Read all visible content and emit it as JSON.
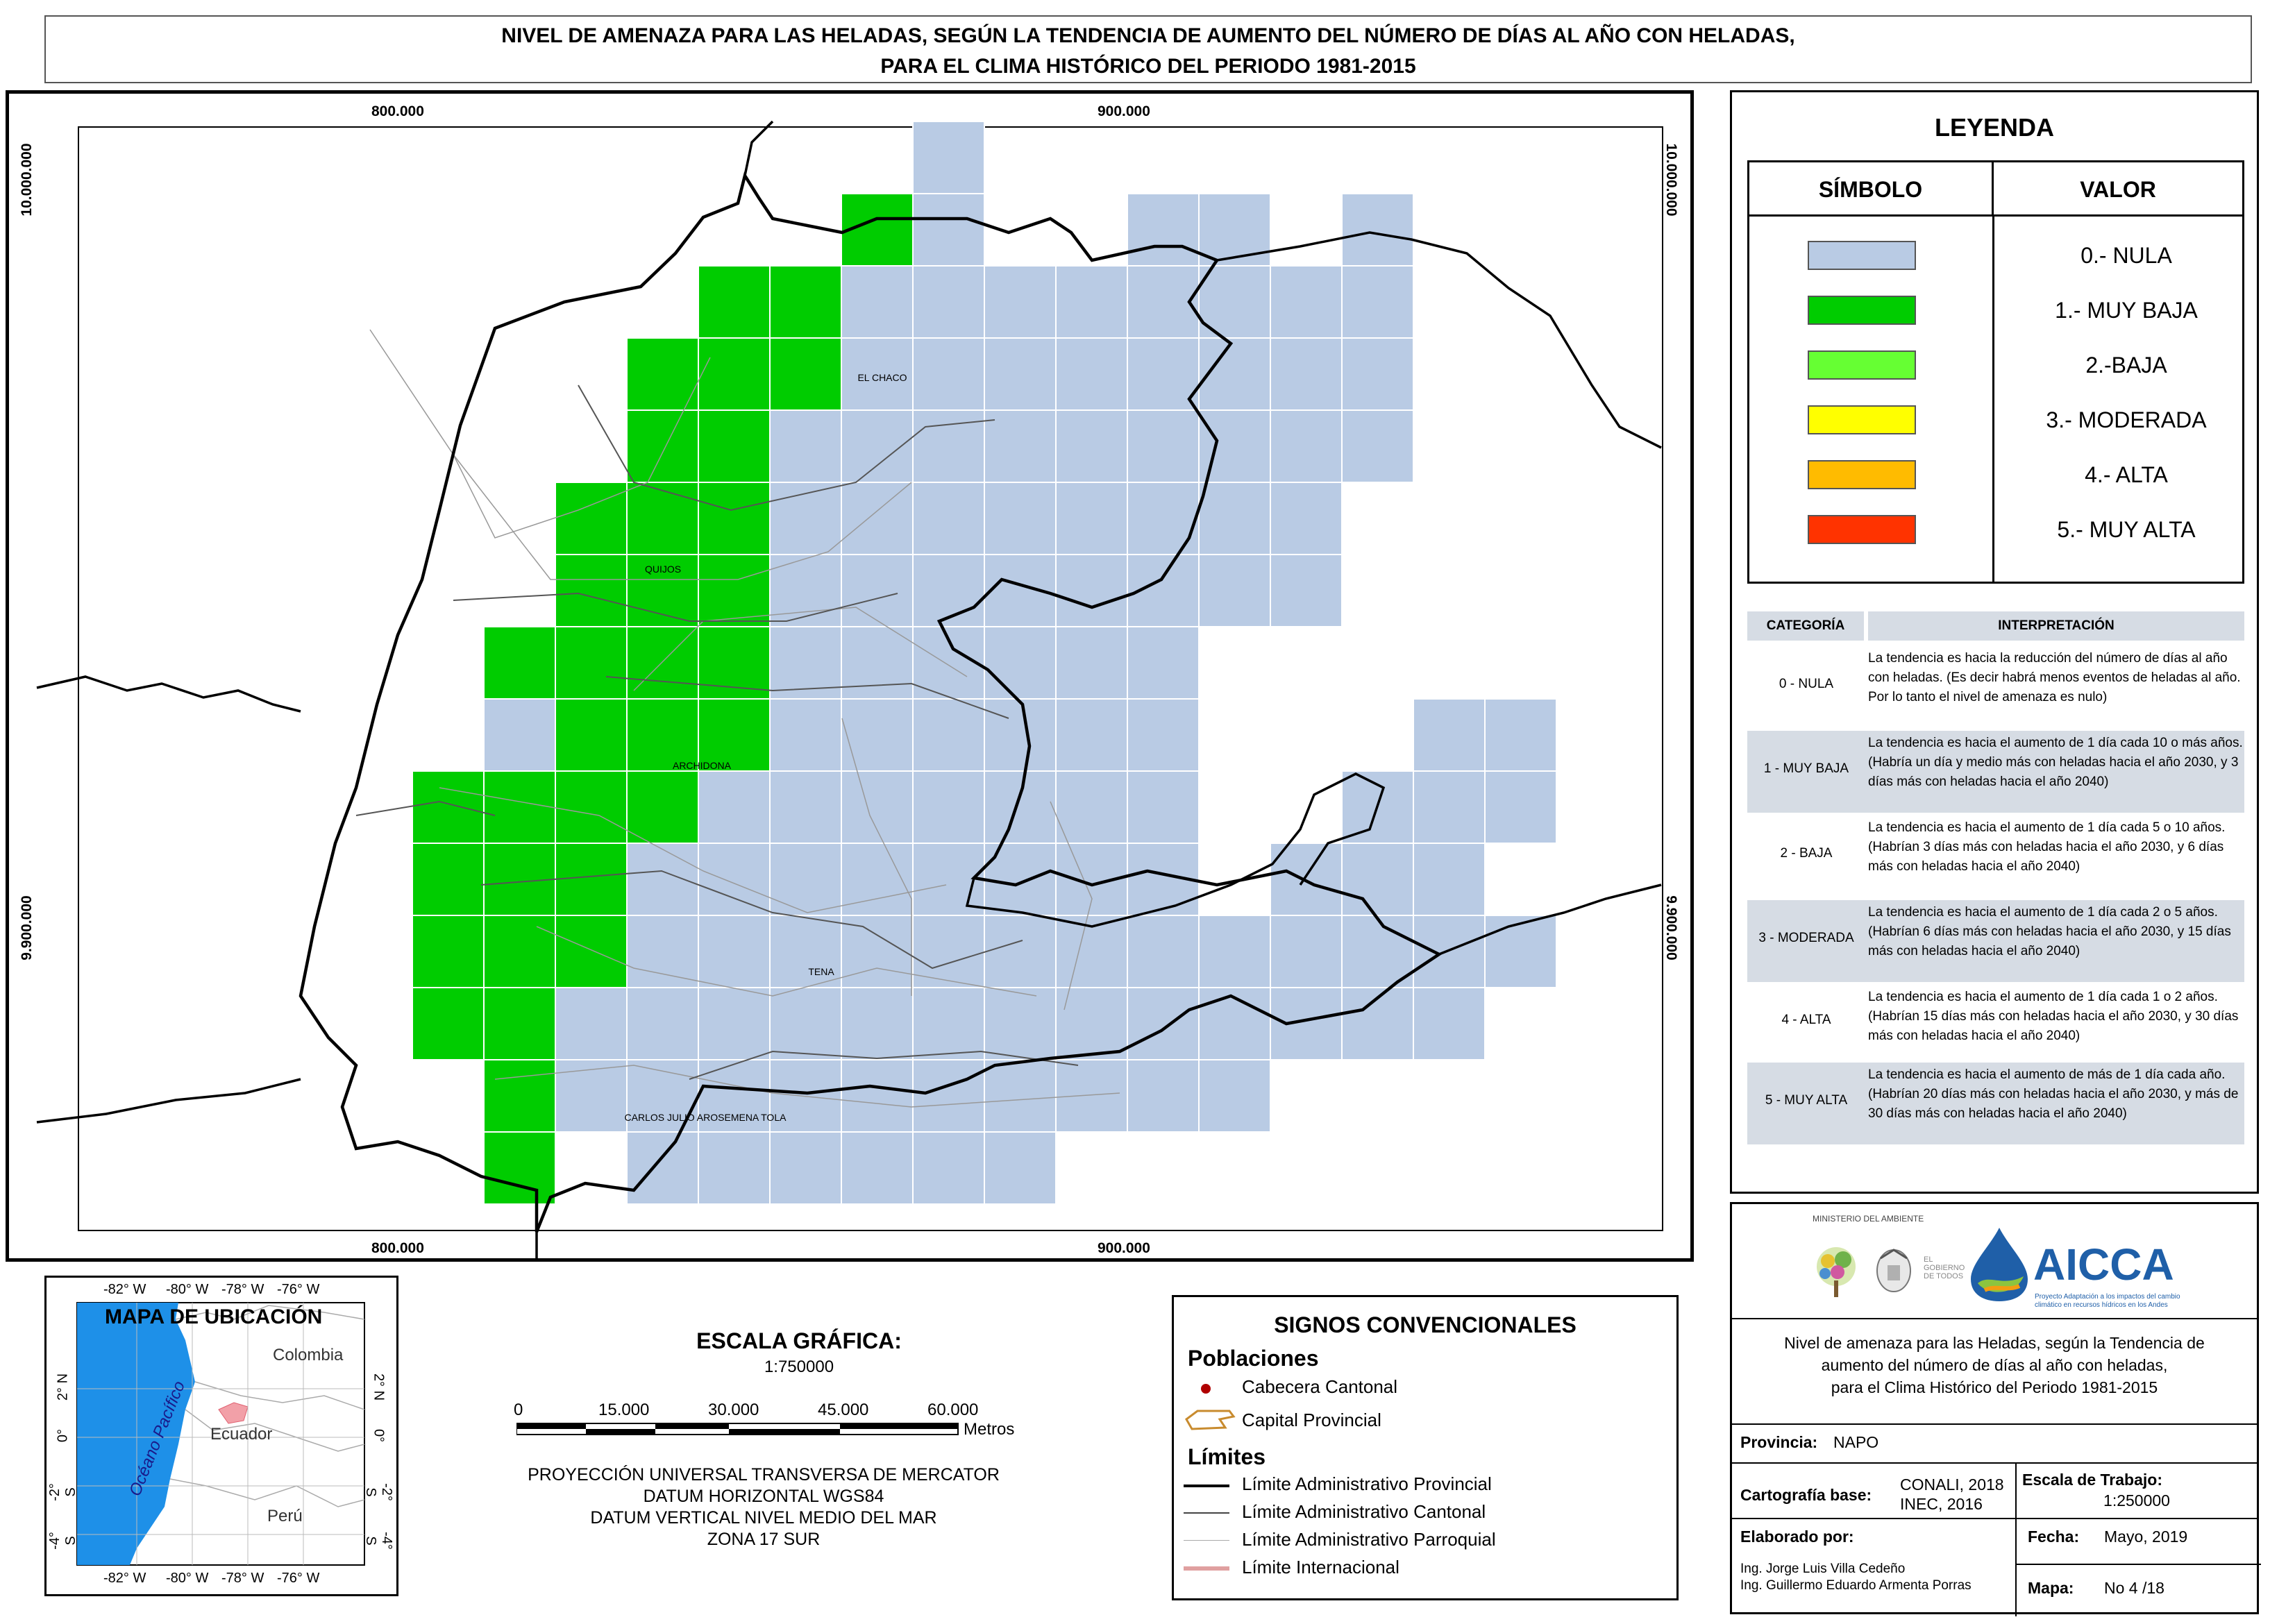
{
  "title": {
    "line1": "NIVEL DE AMENAZA PARA LAS HELADAS, SEGÚN LA TENDENCIA DE AUMENTO DEL NÚMERO DE DÍAS AL AÑO CON HELADAS,",
    "line2": "PARA EL CLIMA HISTÓRICO DEL PERIODO 1981-2015"
  },
  "map": {
    "x_ticks": [
      "800.000",
      "900.000"
    ],
    "y_ticks": [
      "10.000.000",
      "9.900.000"
    ],
    "place_labels": [
      "EL CHACO",
      "QUIJOS",
      "ARCHIDONA",
      "TENA",
      "CARLOS JULIO AROSEMENA TOLA"
    ],
    "colors": {
      "nula": "#b9cbe4",
      "muy_baja": "#00cc00",
      "grid_line": "#ffffff",
      "province_line": "#000000",
      "cantonal_line": "#555555",
      "parroquial_line": "#aaaaaa"
    }
  },
  "legend": {
    "title": "LEYENDA",
    "col_symbol": "SÍMBOLO",
    "col_value": "VALOR",
    "items": [
      {
        "label": "0.- NULA",
        "color": "#b9cbe4"
      },
      {
        "label": "1.- MUY BAJA",
        "color": "#00cc00"
      },
      {
        "label": "2.-BAJA",
        "color": "#66ff33"
      },
      {
        "label": "3.- MODERADA",
        "color": "#ffff00"
      },
      {
        "label": "4.- ALTA",
        "color": "#ffbb00"
      },
      {
        "label": "5.- MUY ALTA",
        "color": "#ff3300"
      }
    ],
    "interp_head_cat": "CATEGORÍA",
    "interp_head_text": "INTERPRETACIÓN",
    "interp_rows": [
      {
        "cat": "0 - NULA",
        "text": "La tendencia es hacia la reducción del número de días al año con heladas. (Es decir habrá menos eventos de heladas al año. Por lo tanto el nivel de amenaza es nulo)"
      },
      {
        "cat": "1 - MUY BAJA",
        "text": "La tendencia es hacia el aumento de 1 día cada 10 o más años. (Habría un día y medio más con heladas hacia el año 2030, y 3 días más con heladas hacia el año 2040)"
      },
      {
        "cat": "2 - BAJA",
        "text": "La tendencia es hacia el aumento de 1 día cada 5 o 10 años. (Habrían 3 días más con heladas hacia el año 2030, y 6 días más con heladas hacia el año 2040)"
      },
      {
        "cat": "3 - MODERADA",
        "text": "La tendencia es hacia el aumento de 1 día cada 2 o 5 años. (Habrían 6 días más con heladas hacia el año 2030, y 15 días más con heladas hacia el año 2040)"
      },
      {
        "cat": "4 - ALTA",
        "text": "La tendencia es hacia el aumento de 1 día cada 1 o 2 años. (Habrían 15 días más con heladas hacia el año 2030, y 30 días más con heladas hacia el año 2040)"
      },
      {
        "cat": "5 - MUY ALTA",
        "text": "La tendencia es hacia el aumento de más de 1 día cada año. (Habrían 20 días más con heladas hacia el año 2030, y más de 30 días más con heladas hacia el año 2040)"
      }
    ]
  },
  "logos": {
    "ministry": "MINISTERIO DEL AMBIENTE",
    "ministry_bold": "AMBIENTE",
    "gov_text": "EL GOBIERNO DE TODOS",
    "aicca": "AICCA",
    "aicca_sub": "Proyecto Adaptación a los impactos del cambio climático en recursos hídricos en los Andes"
  },
  "info": {
    "description_lines": [
      "Nivel de amenaza para las Heladas, según la Tendencia de",
      "aumento del número de días al año con heladas,",
      "para el Clima Histórico del Periodo 1981-2015"
    ],
    "province_label": "Provincia:",
    "province_value": "NAPO",
    "carto_label": "Cartografía base:",
    "carto_values": [
      "CONALI, 2018",
      "INEC, 2016"
    ],
    "scale_label": "Escala de Trabajo:",
    "scale_value": "1:250000",
    "made_label": "Elaborado por:",
    "made_values": [
      "Ing. Jorge Luis Villa Cedeño",
      "Ing. Guillermo Eduardo Armenta Porras"
    ],
    "date_label": "Fecha:",
    "date_value": "Mayo, 2019",
    "map_label": "Mapa:",
    "map_value": "No 4 /18"
  },
  "location_map": {
    "title": "MAPA DE UBICACIÓN",
    "countries": [
      "Colombia",
      "Ecuador",
      "Perú"
    ],
    "ocean": "Océano Pacífico",
    "lon_ticks": [
      "-82° W",
      "-80° W",
      "-78° W",
      "-76° W"
    ],
    "lat_ticks": [
      "2° N",
      "0°",
      "-2° S",
      "-4° S"
    ]
  },
  "scale": {
    "title": "ESCALA GRÁFICA:",
    "ratio": "1:750000",
    "ticks": [
      "0",
      "15.000",
      "30.000",
      "45.000",
      "60.000"
    ],
    "unit": "Metros",
    "projection": [
      "PROYECCIÓN UNIVERSAL TRANSVERSA DE MERCATOR",
      "DATUM HORIZONTAL WGS84",
      "DATUM VERTICAL NIVEL MEDIO DEL MAR",
      "ZONA 17 SUR"
    ]
  },
  "signs": {
    "title": "SIGNOS CONVENCIONALES",
    "poblaciones": "Poblaciones",
    "cabecera": "Cabecera Cantonal",
    "capital": "Capital Provincial",
    "limites": "Límites",
    "lim_prov": "Límite Administrativo Provincial",
    "lim_cant": "Límite Administrativo Cantonal",
    "lim_parr": "Límite Administrativo Parroquial",
    "lim_int": "Límite Internacional"
  }
}
